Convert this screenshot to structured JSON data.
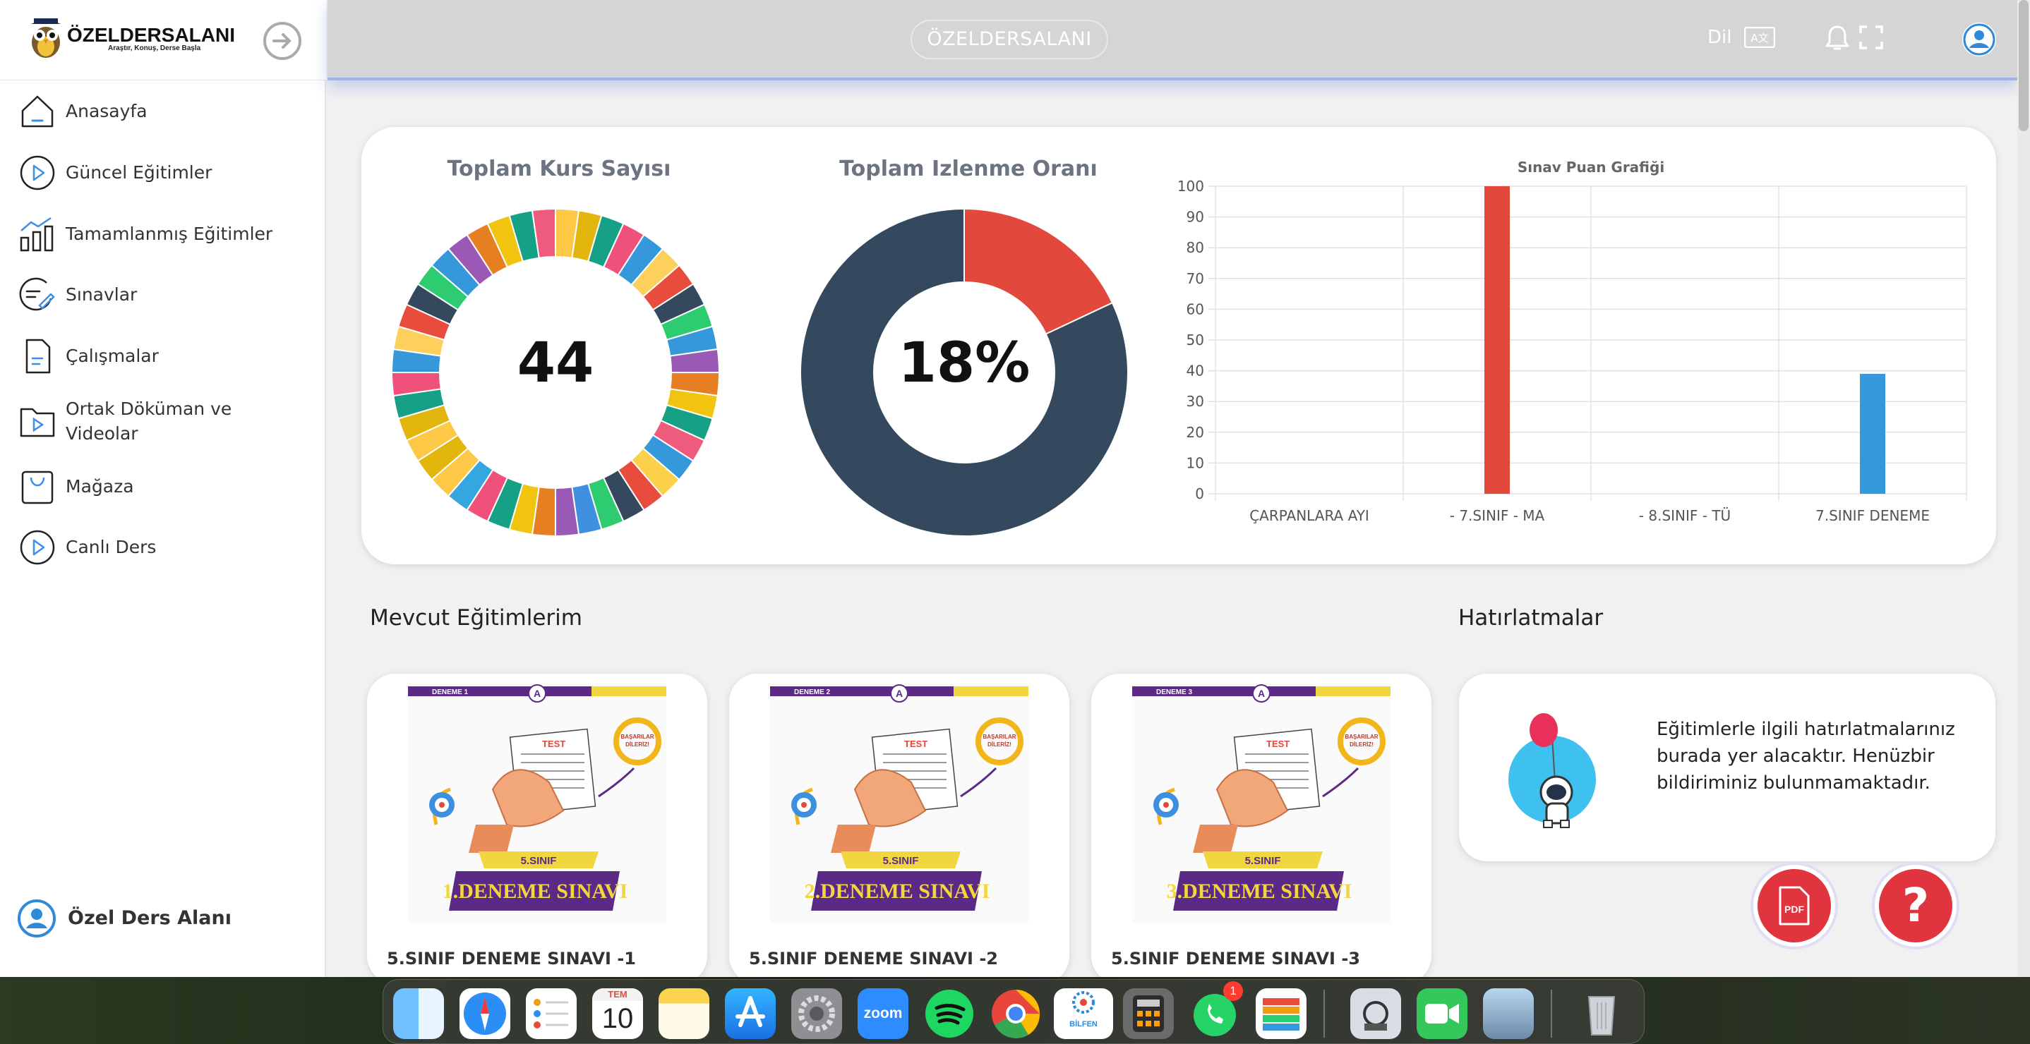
{
  "brand": {
    "name": "ÖZELDERSALANI",
    "tagline": "Araştır, Konuş, Derse Başla"
  },
  "sidebar": {
    "items": [
      {
        "label": "Anasayfa"
      },
      {
        "label": "Güncel Eğitimler"
      },
      {
        "label": "Tamamlanmış Eğitimler"
      },
      {
        "label": "Sınavlar"
      },
      {
        "label": "Çalışmalar"
      },
      {
        "label": "Ortak Döküman ve",
        "label2": "Videolar"
      },
      {
        "label": "Mağaza"
      },
      {
        "label": "Canlı Ders"
      }
    ],
    "user_label": "Özel Ders Alanı"
  },
  "topbar": {
    "center_label": "ÖZELDERSALANI",
    "lang_label": "Dil",
    "lang_icon_text": "A文"
  },
  "stats": {
    "course_title": "Toplam Kurs Sayısı",
    "course_count": "44",
    "watch_title": "Toplam Izlenme Oranı",
    "watch_rate": "18%"
  },
  "chart_data": {
    "type": "bar",
    "title": "Sınav Puan Grafiği",
    "categories": [
      "ÇARPANLARA AYI",
      "- 7.SINIF - MA",
      "- 8.SINIF - TÜ",
      "7.SINIF DENEME"
    ],
    "values": [
      0,
      100,
      0,
      39
    ],
    "colors": [
      "#e2483b",
      "#e2483b",
      "#2f86d6",
      "#3498db"
    ],
    "ylim": [
      0,
      100
    ],
    "yticks": [
      0,
      10,
      20,
      30,
      40,
      50,
      60,
      70,
      80,
      90,
      100
    ],
    "grid": true
  },
  "watch_donut": {
    "watched_percent": 18,
    "watched_color": "#e2483b",
    "rest_color": "#34495e"
  },
  "course_donut": {
    "segments": 44,
    "colors": [
      "#fcc846",
      "#e2b60c",
      "#16a085",
      "#f0517a",
      "#3498db",
      "#fcd05a",
      "#e74c3c",
      "#34495e",
      "#2ecc71",
      "#3498db",
      "#9b59b6",
      "#e67e22",
      "#f1c40f",
      "#16a085",
      "#ef5b7c",
      "#3498db",
      "#fbd14c",
      "#e74c3c",
      "#34495e",
      "#2ecc71",
      "#3f91e0",
      "#9b59b6",
      "#e67e22",
      "#f1c40f",
      "#16a085",
      "#f0517a",
      "#34a6e0",
      "#fcc846",
      "#e2b60c"
    ]
  },
  "section": {
    "courses_title": "Mevcut Eğitimlerim",
    "reminders_title": "Hatırlatmalar",
    "reminders_text": "Eğitimlerle ilgili hatırlatmalarınız burada yer alacaktır. Henüzbir bildiriminiz bulunmamaktadır."
  },
  "courses": [
    {
      "title": "5.SINIF DENEME SINAVI -1",
      "banner": "1.DENEME SINAVI",
      "tag": "DENEME 1",
      "grade": "5.SINIF"
    },
    {
      "title": "5.SINIF DENEME SINAVI -2",
      "banner": "2.DENEME SINAVI",
      "tag": "DENEME 2",
      "grade": "5.SINIF"
    },
    {
      "title": "5.SINIF DENEME SINAVI -3",
      "banner": "3.DENEME SINAVI",
      "tag": "DENEME 3",
      "grade": "5.SINIF"
    }
  ],
  "thumb_text": {
    "test": "TEST",
    "success": "BAŞARILAR DİLERİZ!"
  },
  "fabs": {
    "pdf_label": "PDF",
    "help_label": "?"
  },
  "dock": {
    "calendar_month": "TEM",
    "calendar_day": "10",
    "zoom_label": "zoom",
    "whatsapp_badge": "1",
    "bilfen_label": "BİLFEN"
  }
}
